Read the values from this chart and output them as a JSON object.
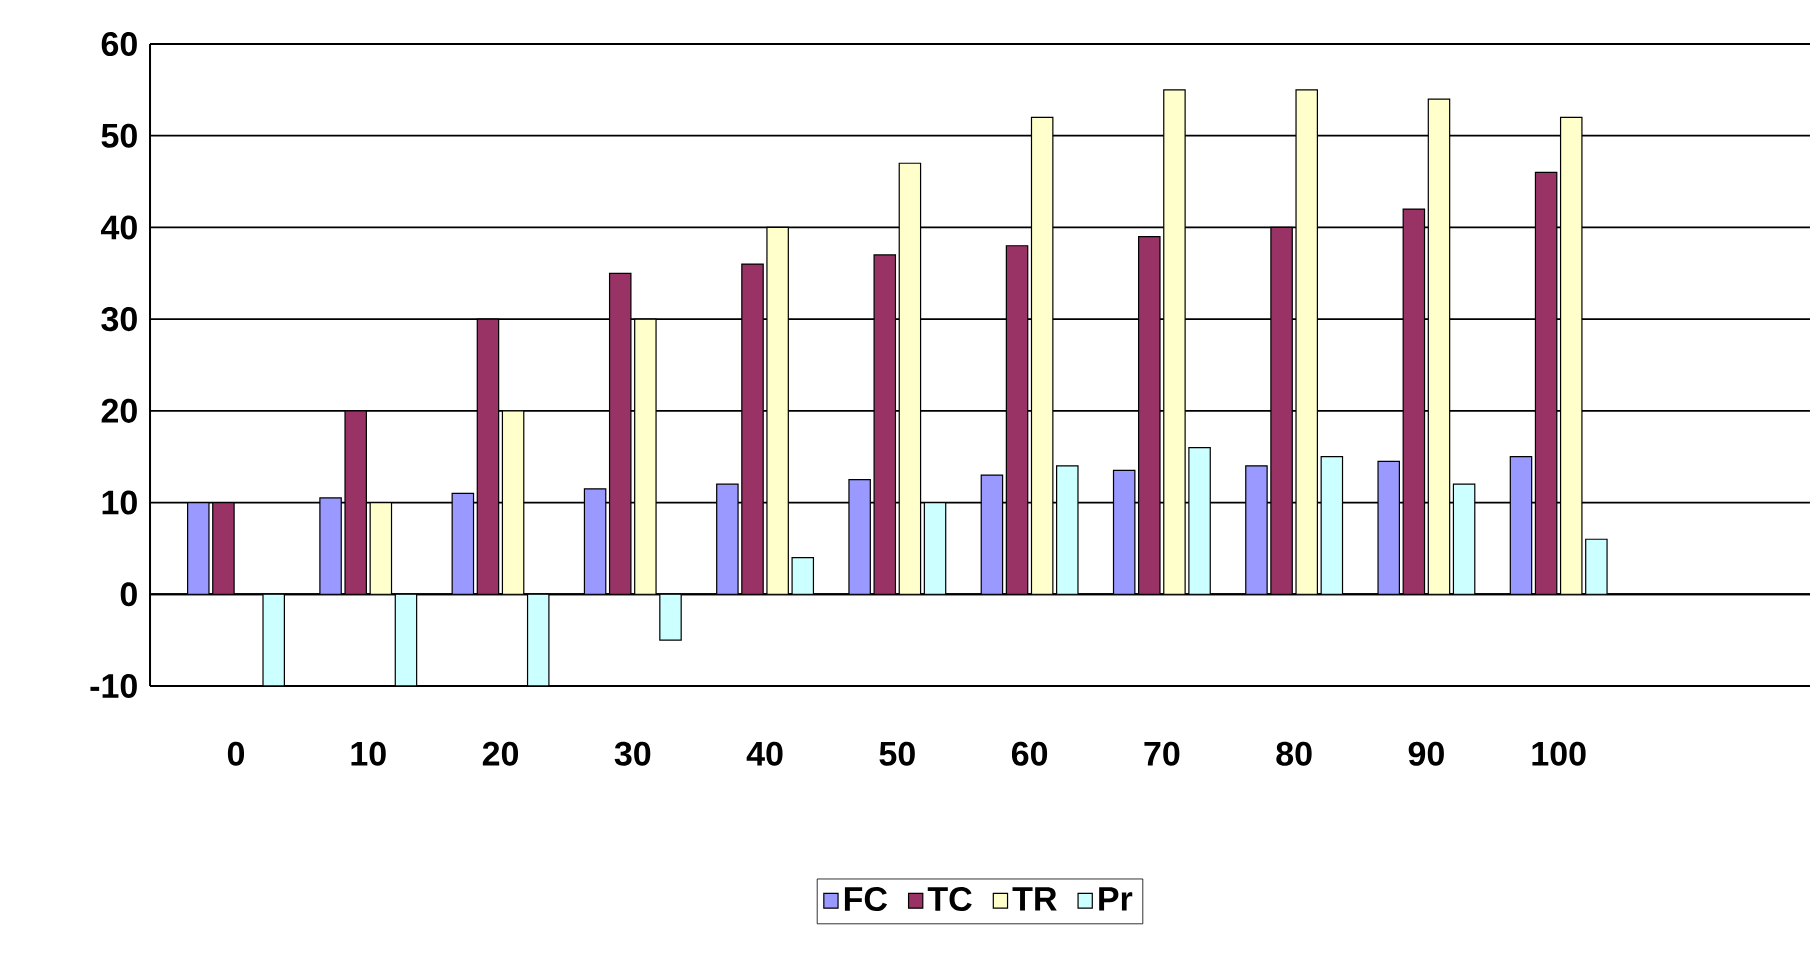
{
  "chart_data": {
    "type": "bar",
    "categories": [
      "0",
      "10",
      "20",
      "30",
      "40",
      "50",
      "60",
      "70",
      "80",
      "90",
      "100"
    ],
    "series": [
      {
        "name": "FC",
        "color": "#9999ff",
        "values": [
          10,
          10.5,
          11,
          11.5,
          12,
          12.5,
          13,
          13.5,
          14,
          14.5,
          15
        ]
      },
      {
        "name": "TC",
        "color": "#993366",
        "values": [
          10,
          20,
          30,
          35,
          36,
          37,
          38,
          39,
          40,
          42,
          46
        ]
      },
      {
        "name": "TR",
        "color": "#ffffcc",
        "values": [
          0,
          10,
          20,
          30,
          40,
          47,
          52,
          55,
          55,
          54,
          52
        ]
      },
      {
        "name": "Pr",
        "color": "#ccffff",
        "values": [
          -10,
          -10,
          -10,
          -5,
          4,
          10,
          14,
          16,
          15,
          12,
          6
        ]
      }
    ],
    "ylim": [
      -10,
      60
    ],
    "yticks": [
      -10,
      0,
      10,
      20,
      30,
      40,
      50,
      60
    ],
    "grid": "y",
    "legend": "bottom"
  }
}
